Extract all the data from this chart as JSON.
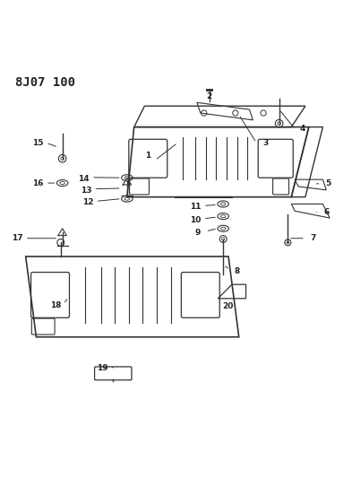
{
  "title": "8J07 100",
  "background_color": "#ffffff",
  "line_color": "#333333",
  "text_color": "#222222"
}
